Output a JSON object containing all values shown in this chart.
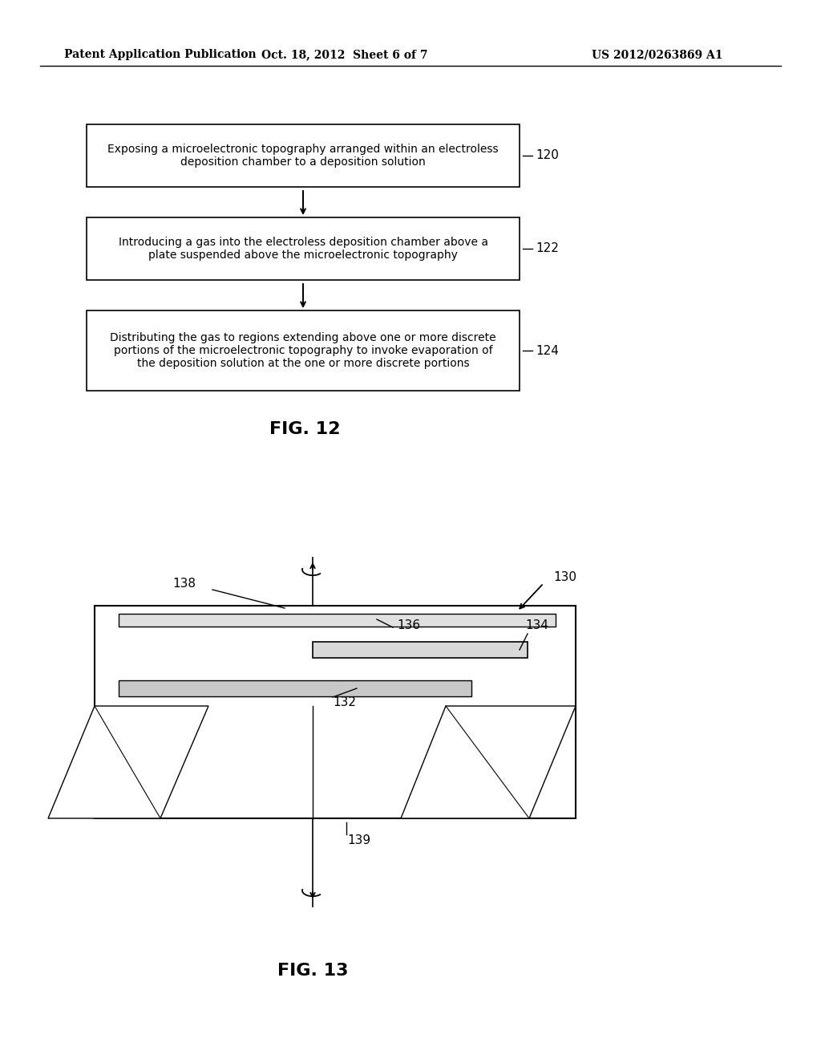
{
  "header_left": "Patent Application Publication",
  "header_center": "Oct. 18, 2012  Sheet 6 of 7",
  "header_right": "US 2012/0263869 A1",
  "fig12_label": "FIG. 12",
  "fig13_label": "FIG. 13",
  "box1_text": "Exposing a microelectronic topography arranged within an electroless\ndeposition chamber to a deposition solution",
  "box1_num": "120",
  "box2_text": "Introducing a gas into the electroless deposition chamber above a\nplate suspended above the microelectronic topography",
  "box2_num": "122",
  "box3_text": "Distributing the gas to regions extending above one or more discrete\nportions of the microelectronic topography to invoke evaporation of\nthe deposition solution at the one or more discrete portions",
  "box3_num": "124",
  "label_130": "130",
  "label_132": "132",
  "label_134": "134",
  "label_136": "136",
  "label_138": "138",
  "label_139": "139",
  "bg_color": "#ffffff",
  "text_color": "#000000",
  "line_color": "#000000"
}
